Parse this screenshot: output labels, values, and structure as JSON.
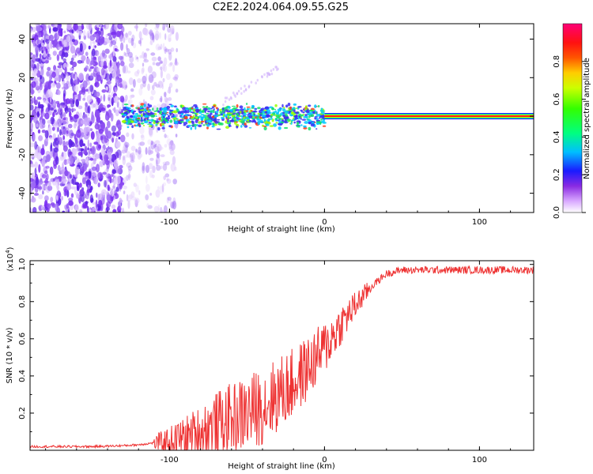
{
  "title": "C2E2.2024.064.09.55.G25",
  "chart_data": [
    {
      "type": "heatmap",
      "xlabel": "Height of straight line (km)",
      "ylabel": "Frequency (Hz)",
      "xlim": [
        -190,
        135
      ],
      "ylim": [
        -50,
        48
      ],
      "xticks": [
        -100,
        0,
        100
      ],
      "yticks": [
        -40,
        -20,
        0,
        20,
        40
      ],
      "colorbar": {
        "label": "Normalized spectral amplitude",
        "range": [
          0,
          1
        ],
        "ticks": [
          "0.0",
          "0.2",
          "0.4",
          "0.6",
          "0.8"
        ]
      },
      "features": {
        "noise_region_x": [
          -190,
          -100
        ],
        "signal_onset_x": -130,
        "strong_signal_start_x": 0,
        "signal_frequency_hz": 0
      }
    },
    {
      "type": "line",
      "xlabel": "Height of straight line (km)",
      "ylabel": "SNR (10 * v/v)",
      "ylabel_multiplier": "(x10",
      "ylabel_exponent": "4",
      "xlim": [
        -190,
        135
      ],
      "ylim": [
        0.0,
        1.02
      ],
      "xticks": [
        -100,
        0,
        100
      ],
      "yticks": [
        "0.2",
        "0.4",
        "0.6",
        "0.8",
        "1.0"
      ],
      "series_color": "#ee3333",
      "x": [
        -190,
        -150,
        -130,
        -120,
        -110,
        -100,
        -90,
        -80,
        -70,
        -60,
        -50,
        -40,
        -30,
        -20,
        -10,
        0,
        10,
        20,
        30,
        40,
        50,
        60,
        70,
        80,
        90,
        100,
        110,
        120,
        135
      ],
      "y": [
        0.02,
        0.02,
        0.025,
        0.03,
        0.04,
        0.05,
        0.07,
        0.1,
        0.14,
        0.17,
        0.2,
        0.24,
        0.3,
        0.36,
        0.45,
        0.55,
        0.67,
        0.78,
        0.88,
        0.95,
        0.97,
        0.97,
        0.97,
        0.97,
        0.97,
        0.97,
        0.97,
        0.97,
        0.97
      ]
    }
  ]
}
